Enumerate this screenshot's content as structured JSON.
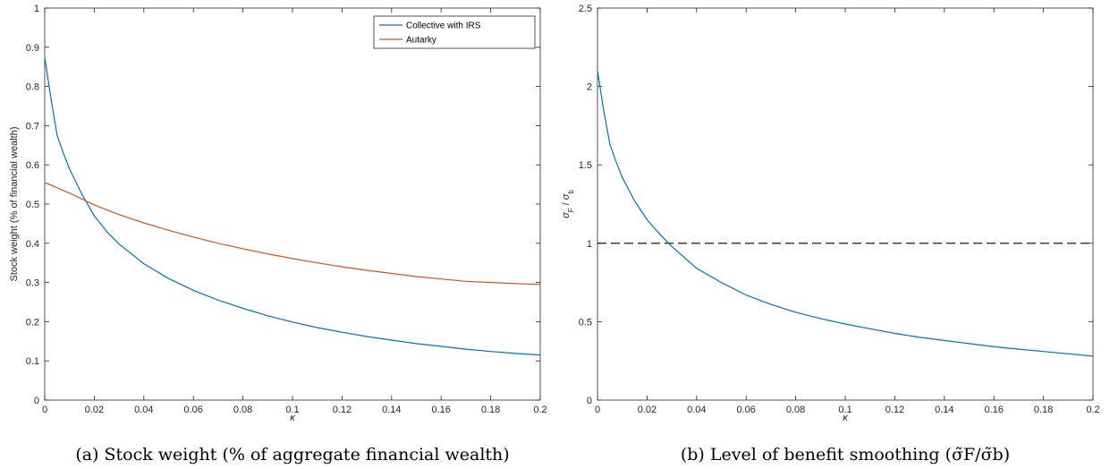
{
  "chart_data": [
    {
      "type": "line",
      "ylabel": "Stock weight (% of financial wealth)",
      "xlabel": "κ",
      "xlim": [
        0,
        0.2
      ],
      "ylim": [
        0,
        1
      ],
      "xticks": [
        "0",
        "0.02",
        "0.04",
        "0.06",
        "0.08",
        "0.1",
        "0.12",
        "0.14",
        "0.16",
        "0.18",
        "0.2"
      ],
      "yticks": [
        "0",
        "0.1",
        "0.2",
        "0.3",
        "0.4",
        "0.5",
        "0.6",
        "0.7",
        "0.8",
        "0.9",
        "1"
      ],
      "grid": false,
      "legend_position": "top-right",
      "caption": "(a) Stock weight (% of aggregate financial wealth)",
      "series": [
        {
          "name": "Collective with IRS",
          "color": "#0072BD",
          "x": [
            0.0,
            0.0025,
            0.005,
            0.0075,
            0.01,
            0.015,
            0.02,
            0.025,
            0.03,
            0.04,
            0.05,
            0.06,
            0.07,
            0.08,
            0.09,
            0.1,
            0.11,
            0.12,
            0.13,
            0.14,
            0.15,
            0.16,
            0.17,
            0.18,
            0.19,
            0.2
          ],
          "y": [
            0.875,
            0.77,
            0.675,
            0.63,
            0.59,
            0.525,
            0.47,
            0.43,
            0.398,
            0.348,
            0.31,
            0.28,
            0.255,
            0.234,
            0.215,
            0.199,
            0.185,
            0.173,
            0.162,
            0.153,
            0.144,
            0.137,
            0.13,
            0.124,
            0.119,
            0.115
          ]
        },
        {
          "name": "Autarky",
          "color": "#D95319",
          "x": [
            0.0,
            0.01,
            0.02,
            0.03,
            0.04,
            0.05,
            0.06,
            0.07,
            0.08,
            0.09,
            0.1,
            0.11,
            0.12,
            0.13,
            0.14,
            0.15,
            0.16,
            0.17,
            0.18,
            0.19,
            0.2
          ],
          "y": [
            0.555,
            0.528,
            0.498,
            0.473,
            0.452,
            0.433,
            0.416,
            0.4,
            0.386,
            0.373,
            0.361,
            0.35,
            0.34,
            0.331,
            0.323,
            0.315,
            0.309,
            0.303,
            0.3,
            0.297,
            0.295
          ]
        }
      ]
    },
    {
      "type": "line",
      "ylabel": "σ_F / σ_b",
      "xlabel": "κ",
      "xlim": [
        0,
        0.2
      ],
      "ylim": [
        0,
        2.5
      ],
      "xticks": [
        "0",
        "0.02",
        "0.04",
        "0.06",
        "0.08",
        "0.1",
        "0.12",
        "0.14",
        "0.16",
        "0.18",
        "0.2"
      ],
      "yticks": [
        "0",
        "0.5",
        "1",
        "1.5",
        "2",
        "2.5"
      ],
      "grid": false,
      "caption": "(b) Level of benefit smoothing (σ̃F/σ̃b)",
      "reference_line": {
        "y": 1,
        "style": "dashed",
        "color": "#000000"
      },
      "series": [
        {
          "color": "#0072BD",
          "x": [
            0.0,
            0.0025,
            0.005,
            0.0075,
            0.01,
            0.015,
            0.02,
            0.025,
            0.03,
            0.04,
            0.05,
            0.06,
            0.07,
            0.08,
            0.09,
            0.1,
            0.11,
            0.12,
            0.13,
            0.14,
            0.15,
            0.16,
            0.17,
            0.18,
            0.19,
            0.2
          ],
          "y": [
            2.1,
            1.85,
            1.63,
            1.52,
            1.42,
            1.27,
            1.15,
            1.06,
            0.98,
            0.84,
            0.75,
            0.67,
            0.61,
            0.56,
            0.52,
            0.485,
            0.455,
            0.425,
            0.4,
            0.38,
            0.36,
            0.34,
            0.325,
            0.31,
            0.295,
            0.28
          ]
        }
      ]
    }
  ]
}
